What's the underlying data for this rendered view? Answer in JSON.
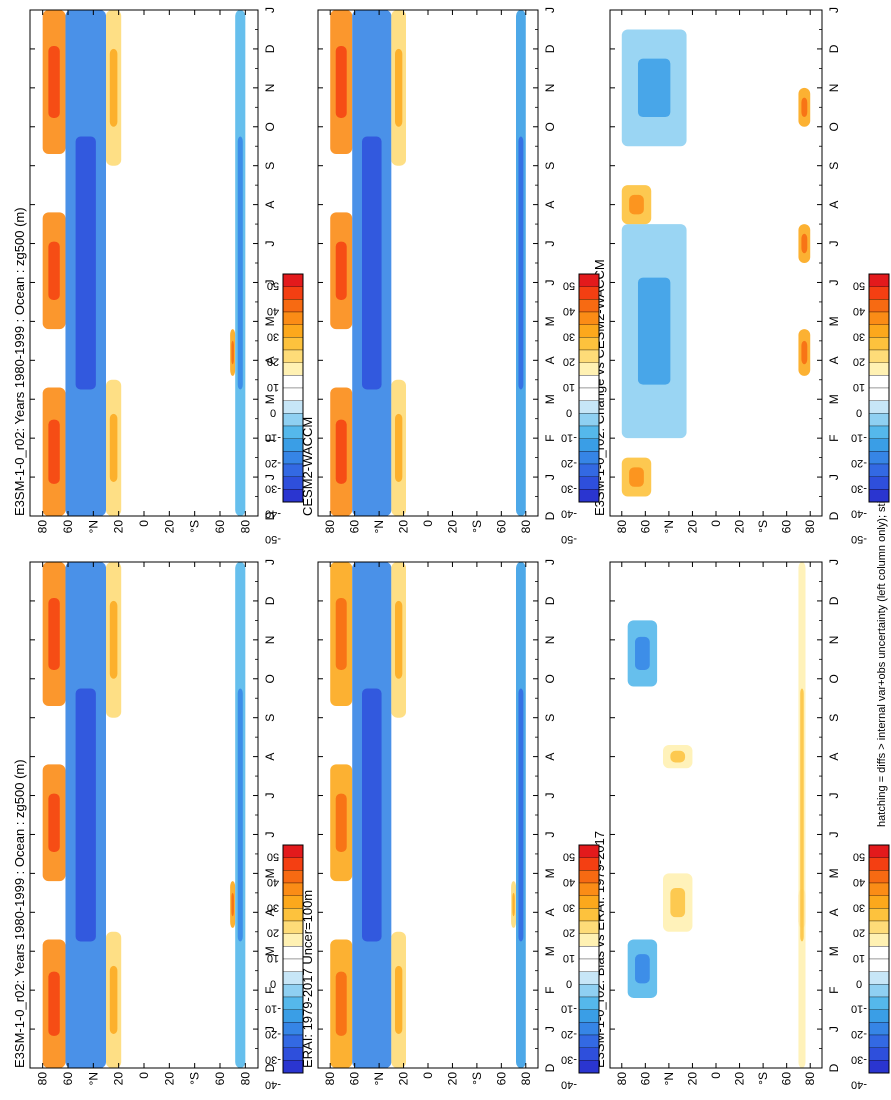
{
  "figure": {
    "footnote": "hatching = diffs > internal var+obs uncertainty (left column only); stippling = diffs > internal var only (both columns)"
  },
  "colorbar": {
    "labels": [
      "50",
      "40",
      "30",
      "20",
      "10",
      "0",
      "-10",
      "-20",
      "-30",
      "-40",
      "-50"
    ],
    "colors": [
      "#e31a1c",
      "#f43f12",
      "#f76a12",
      "#fb8c16",
      "#fca81c",
      "#fdc23d",
      "#fedc78",
      "#fff1b3",
      "#ffffff",
      "#ffffff",
      "#c7e6f7",
      "#8fd0f2",
      "#55b8eb",
      "#3a9ee6",
      "#3685e6",
      "#3369e3",
      "#2e4fdc",
      "#2a35d0"
    ]
  },
  "axes_common": {
    "months": [
      "D",
      "J",
      "F",
      "M",
      "A",
      "M",
      "J",
      "J",
      "A",
      "S",
      "O",
      "N",
      "D",
      "J"
    ],
    "lat_ticks": [
      "80",
      "60",
      "°N",
      "20",
      "0",
      "20",
      "°S",
      "60",
      "80"
    ]
  },
  "chart_data": [
    {
      "panel": "left-top",
      "type": "heatmap",
      "title": "E3SM-1-0_r02: Years 1980-1999 : Ocean : zg500 (m)",
      "x": "month (Dec–Jan, 14 ticks)",
      "y": "latitude 90N–90S",
      "features": [
        {
          "kind": "pos",
          "lat_band": [
            62,
            80
          ],
          "months": [
            [
              0,
              3.3
            ],
            [
              4.8,
              7.8
            ],
            [
              9.3,
              13
            ]
          ],
          "value": 30
        },
        {
          "kind": "neg",
          "lat_band": [
            30,
            62
          ],
          "months": [
            [
              0,
              13
            ]
          ],
          "value": -35
        },
        {
          "kind": "pos",
          "lat_band": [
            18,
            30
          ],
          "months": [
            [
              0,
              3.5
            ],
            [
              9,
              13
            ]
          ],
          "value": 15
        },
        {
          "kind": "pos",
          "lat_band": [
            -72,
            -68
          ],
          "months": [
            [
              3.6,
              4.8
            ]
          ],
          "value": 25
        },
        {
          "kind": "neg",
          "lat_band": [
            -80,
            -72
          ],
          "months": [
            [
              0,
              13
            ]
          ],
          "value": -20
        }
      ]
    },
    {
      "panel": "right-top",
      "type": "heatmap",
      "title": "E3SM-1-0_r02: Years 1980-1999 : Ocean : zg500 (m)",
      "x": "month (Dec–Jan, 14 ticks)",
      "y": "latitude 90N–90S",
      "features": [
        {
          "kind": "pos",
          "lat_band": [
            62,
            80
          ],
          "months": [
            [
              0,
              3.3
            ],
            [
              4.8,
              7.8
            ],
            [
              9.3,
              13
            ]
          ],
          "value": 30
        },
        {
          "kind": "neg",
          "lat_band": [
            30,
            62
          ],
          "months": [
            [
              0,
              13
            ]
          ],
          "value": -35
        },
        {
          "kind": "pos",
          "lat_band": [
            18,
            30
          ],
          "months": [
            [
              0,
              3.5
            ],
            [
              9,
              13
            ]
          ],
          "value": 15
        },
        {
          "kind": "pos",
          "lat_band": [
            -72,
            -68
          ],
          "months": [
            [
              3.6,
              4.8
            ]
          ],
          "value": 25
        },
        {
          "kind": "neg",
          "lat_band": [
            -80,
            -72
          ],
          "months": [
            [
              0,
              13
            ]
          ],
          "value": -20
        }
      ]
    },
    {
      "panel": "left-middle",
      "type": "heatmap",
      "title": "ERAI: 1979-2017 Uncer=100m",
      "x": "month (Dec–Jan, 14 ticks)",
      "y": "latitude 90N–90S",
      "features": [
        {
          "kind": "pos",
          "lat_band": [
            62,
            80
          ],
          "months": [
            [
              0,
              3.3
            ],
            [
              4.8,
              7.8
            ],
            [
              9.3,
              13
            ]
          ],
          "value": 25
        },
        {
          "kind": "neg",
          "lat_band": [
            30,
            62
          ],
          "months": [
            [
              0,
              13
            ]
          ],
          "value": -35
        },
        {
          "kind": "pos",
          "lat_band": [
            18,
            30
          ],
          "months": [
            [
              0,
              3.5
            ],
            [
              9,
              13
            ]
          ],
          "value": 15
        },
        {
          "kind": "pos",
          "lat_band": [
            -72,
            -68
          ],
          "months": [
            [
              3.6,
              4.8
            ]
          ],
          "value": 15
        },
        {
          "kind": "neg",
          "lat_band": [
            -80,
            -72
          ],
          "months": [
            [
              0,
              13
            ]
          ],
          "value": -25
        }
      ]
    },
    {
      "panel": "right-middle",
      "type": "heatmap",
      "title": "CESM2-WACCM",
      "x": "month (Dec–Jan, 14 ticks)",
      "y": "latitude 90N–90S",
      "features": [
        {
          "kind": "pos",
          "lat_band": [
            62,
            80
          ],
          "months": [
            [
              0,
              3.3
            ],
            [
              4.8,
              7.8
            ],
            [
              9.3,
              13
            ]
          ],
          "value": 35
        },
        {
          "kind": "neg",
          "lat_band": [
            30,
            62
          ],
          "months": [
            [
              0,
              13
            ]
          ],
          "value": -35
        },
        {
          "kind": "pos",
          "lat_band": [
            18,
            30
          ],
          "months": [
            [
              0,
              3.5
            ],
            [
              9,
              13
            ]
          ],
          "value": 15
        },
        {
          "kind": "neg",
          "lat_band": [
            -80,
            -72
          ],
          "months": [
            [
              0,
              13
            ]
          ],
          "value": -25
        }
      ]
    },
    {
      "panel": "left-bottom",
      "type": "heatmap",
      "title": "E3SM-1-0_r02: Bias vs ERAI: 1979-2017",
      "x": "month (Dec–Jan, 14 ticks)",
      "y": "latitude 90N–90S",
      "features": [
        {
          "kind": "neg",
          "lat_band": [
            50,
            75
          ],
          "months": [
            [
              1.8,
              3.3
            ],
            [
              9.8,
              11.5
            ]
          ],
          "value": -20
        },
        {
          "kind": "pos",
          "lat_band": [
            20,
            45
          ],
          "months": [
            [
              3.5,
              5
            ],
            [
              7.7,
              8.3
            ]
          ],
          "value": 10
        },
        {
          "kind": "pos",
          "lat_band": [
            -76,
            -70
          ],
          "months": [
            [
              3.6,
              4.6
            ]
          ],
          "value": 25
        },
        {
          "kind": "pos",
          "lat_band": [
            -76,
            -70
          ],
          "months": [
            [
              0,
              13
            ]
          ],
          "value": 10
        }
      ]
    },
    {
      "panel": "right-bottom",
      "type": "heatmap",
      "title": "E3SM-1-0_r02: Change vs CESM2-WACCM",
      "x": "month (Dec–Jan, 14 ticks)",
      "y": "latitude 90N–90S",
      "features": [
        {
          "kind": "neg",
          "lat_band": [
            25,
            80
          ],
          "months": [
            [
              2,
              7.5
            ],
            [
              9.5,
              12.5
            ]
          ],
          "value": -15
        },
        {
          "kind": "pos",
          "lat_band": [
            55,
            80
          ],
          "months": [
            [
              0.5,
              1.5
            ],
            [
              7.5,
              8.5
            ]
          ],
          "value": 20
        },
        {
          "kind": "pos",
          "lat_band": [
            -80,
            -70
          ],
          "months": [
            [
              3.6,
              4.8
            ],
            [
              6.5,
              7.5
            ],
            [
              10,
              11
            ]
          ],
          "value": 25
        }
      ]
    }
  ]
}
